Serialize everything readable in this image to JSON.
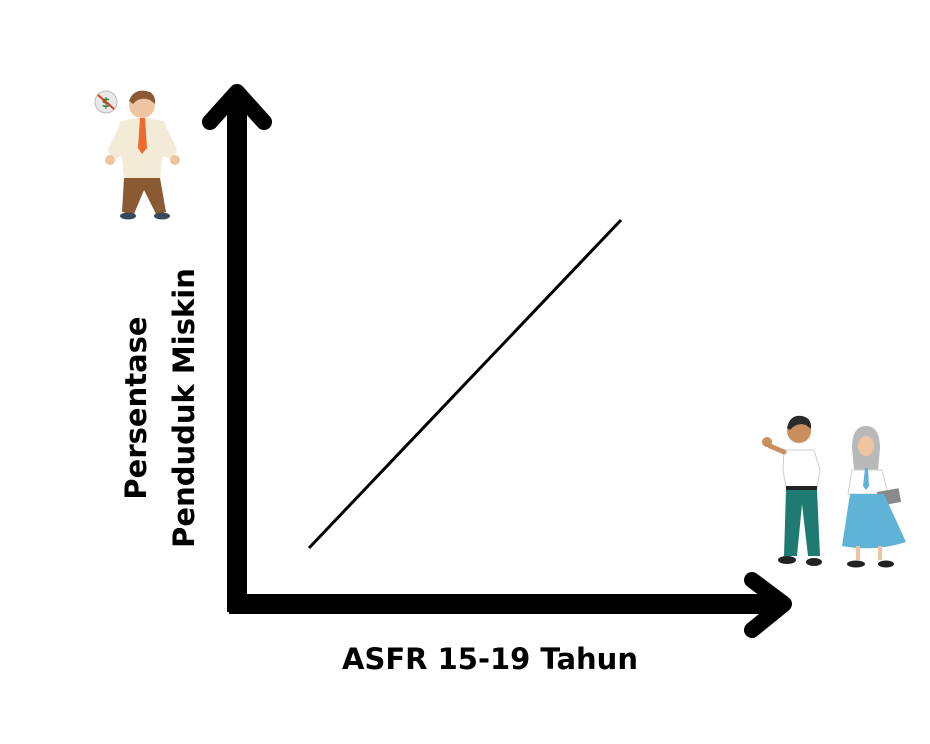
{
  "chart_data": {
    "type": "line",
    "xlabel": "ASFR 15-19 Tahun",
    "ylabel": [
      "Persentase",
      "Penduduk Miskin"
    ],
    "trend": "positive",
    "grid": false,
    "legend": "none"
  },
  "illustrations": {
    "top_left": "poor-man-empty-pockets",
    "bottom_right": "two-students-in-uniform"
  },
  "colors": {
    "axes": "#000000",
    "line": "#000000",
    "background": "#ffffff",
    "tie": "#f06a2a",
    "pants": "#8a5a33",
    "teal": "#1f7a72",
    "skirt": "#5fb3d6",
    "hijab": "#b9b9b9"
  }
}
